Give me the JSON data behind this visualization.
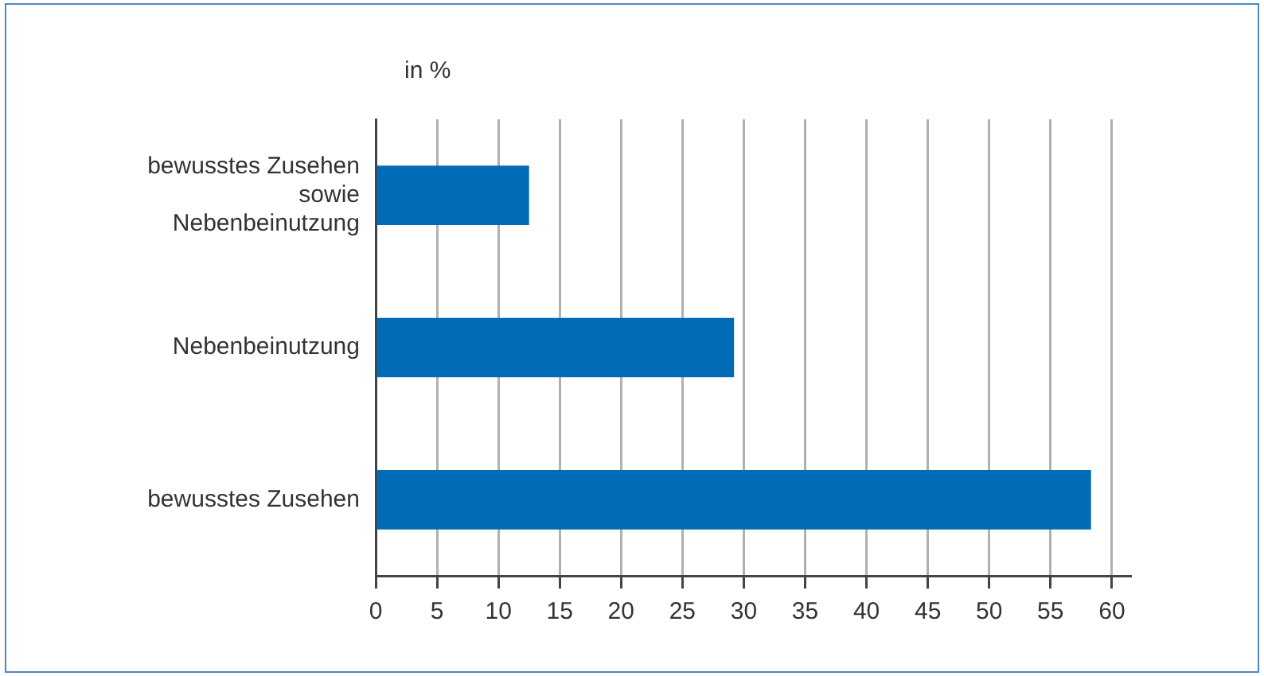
{
  "chart_data": {
    "type": "bar",
    "orientation": "horizontal",
    "xlabel": "in %",
    "categories": [
      "bewusstes Zusehen sowie Nebenbeinutzung",
      "Nebenbeinutzung",
      "bewusstes Zusehen"
    ],
    "values": [
      12.5,
      29.2,
      58.3
    ],
    "color": "#006bb6",
    "xlim": [
      0,
      61.5
    ],
    "xticks": [
      0,
      5,
      10,
      15,
      20,
      25,
      30,
      35,
      40,
      45,
      50,
      55,
      60
    ],
    "grid": "x",
    "legend": false
  }
}
